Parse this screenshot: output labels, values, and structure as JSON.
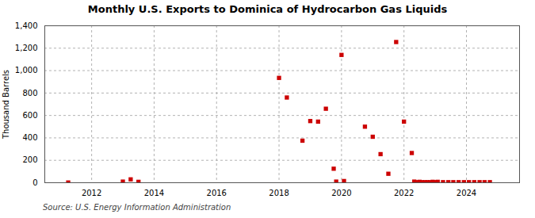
{
  "chart_data": {
    "type": "scatter",
    "title": "Monthly U.S. Exports to Dominica of Hydrocarbon Gas Liquids",
    "ylabel": "Thousand Barrels",
    "source": "Source: U.S. Energy Information Administration",
    "x": [
      2011.25,
      2013.0,
      2013.25,
      2013.5,
      2018.0,
      2018.25,
      2018.75,
      2019.0,
      2019.25,
      2019.5,
      2019.75,
      2019.83,
      2020.0,
      2020.08,
      2020.75,
      2021.0,
      2021.25,
      2021.5,
      2021.75,
      2022.0,
      2022.25,
      2022.33,
      2022.42,
      2022.5,
      2022.58,
      2022.67,
      2022.75,
      2022.83,
      2022.92,
      2023.0,
      2023.08,
      2023.25,
      2023.42,
      2023.58,
      2023.75,
      2023.92,
      2024.08,
      2024.25,
      2024.42,
      2024.58,
      2024.75
    ],
    "values": [
      2,
      10,
      30,
      8,
      935,
      760,
      375,
      550,
      545,
      660,
      125,
      10,
      1140,
      15,
      500,
      410,
      255,
      80,
      1255,
      545,
      265,
      10,
      5,
      8,
      5,
      5,
      5,
      5,
      8,
      5,
      8,
      5,
      5,
      5,
      5,
      5,
      5,
      5,
      5,
      5,
      5
    ],
    "color": "#cc0000",
    "marker": "square",
    "xlim": [
      2010.5,
      2025.7
    ],
    "xticks": [
      2012,
      2014,
      2016,
      2018,
      2020,
      2022,
      2024
    ],
    "ylim": [
      0,
      1400
    ],
    "yticks": [
      0,
      200,
      400,
      600,
      800,
      {
        "value": 1000,
        "label": "1,000"
      },
      {
        "value": 1200,
        "label": "1,200"
      },
      {
        "value": 1400,
        "label": "1,400"
      }
    ],
    "grid": true
  }
}
